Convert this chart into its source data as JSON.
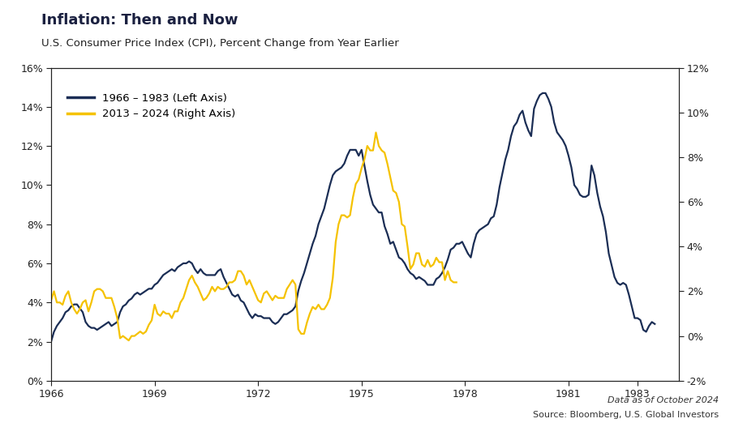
{
  "title": "Inflation: Then and Now",
  "subtitle": "U.S. Consumer Price Index (CPI), Percent Change from Year Earlier",
  "legend1": "1966 – 1983 (Left Axis)",
  "legend2": "2013 – 2024 (Right Axis)",
  "color1": "#1b2e55",
  "color2": "#f5c200",
  "source_line1": "Data as of October 2024",
  "source_line2": "Source: Bloomberg, U.S. Global Investors",
  "left_ylim": [
    0,
    16
  ],
  "right_ylim": [
    -2,
    12
  ],
  "left_yticks": [
    0,
    2,
    4,
    6,
    8,
    10,
    12,
    14,
    16
  ],
  "right_yticks": [
    -2,
    0,
    2,
    4,
    6,
    8,
    10,
    12
  ],
  "xticks": [
    1966,
    1969,
    1972,
    1975,
    1978,
    1981,
    1983
  ],
  "xlim": [
    1966,
    1984.2
  ],
  "series1_x": [
    1966.0,
    1966.083,
    1966.167,
    1966.25,
    1966.333,
    1966.417,
    1966.5,
    1966.583,
    1966.667,
    1966.75,
    1966.833,
    1966.917,
    1967.0,
    1967.083,
    1967.167,
    1967.25,
    1967.333,
    1967.417,
    1967.5,
    1967.583,
    1967.667,
    1967.75,
    1967.833,
    1967.917,
    1968.0,
    1968.083,
    1968.167,
    1968.25,
    1968.333,
    1968.417,
    1968.5,
    1968.583,
    1968.667,
    1968.75,
    1968.833,
    1968.917,
    1969.0,
    1969.083,
    1969.167,
    1969.25,
    1969.333,
    1969.417,
    1969.5,
    1969.583,
    1969.667,
    1969.75,
    1969.833,
    1969.917,
    1970.0,
    1970.083,
    1970.167,
    1970.25,
    1970.333,
    1970.417,
    1970.5,
    1970.583,
    1970.667,
    1970.75,
    1970.833,
    1970.917,
    1971.0,
    1971.083,
    1971.167,
    1971.25,
    1971.333,
    1971.417,
    1971.5,
    1971.583,
    1971.667,
    1971.75,
    1971.833,
    1971.917,
    1972.0,
    1972.083,
    1972.167,
    1972.25,
    1972.333,
    1972.417,
    1972.5,
    1972.583,
    1972.667,
    1972.75,
    1972.833,
    1972.917,
    1973.0,
    1973.083,
    1973.167,
    1973.25,
    1973.333,
    1973.417,
    1973.5,
    1973.583,
    1973.667,
    1973.75,
    1973.833,
    1973.917,
    1974.0,
    1974.083,
    1974.167,
    1974.25,
    1974.333,
    1974.417,
    1974.5,
    1974.583,
    1974.667,
    1974.75,
    1974.833,
    1974.917,
    1975.0,
    1975.083,
    1975.167,
    1975.25,
    1975.333,
    1975.417,
    1975.5,
    1975.583,
    1975.667,
    1975.75,
    1975.833,
    1975.917,
    1976.0,
    1976.083,
    1976.167,
    1976.25,
    1976.333,
    1976.417,
    1976.5,
    1976.583,
    1976.667,
    1976.75,
    1976.833,
    1976.917,
    1977.0,
    1977.083,
    1977.167,
    1977.25,
    1977.333,
    1977.417,
    1977.5,
    1977.583,
    1977.667,
    1977.75,
    1977.833,
    1977.917,
    1978.0,
    1978.083,
    1978.167,
    1978.25,
    1978.333,
    1978.417,
    1978.5,
    1978.583,
    1978.667,
    1978.75,
    1978.833,
    1978.917,
    1979.0,
    1979.083,
    1979.167,
    1979.25,
    1979.333,
    1979.417,
    1979.5,
    1979.583,
    1979.667,
    1979.75,
    1979.833,
    1979.917,
    1980.0,
    1980.083,
    1980.167,
    1980.25,
    1980.333,
    1980.417,
    1980.5,
    1980.583,
    1980.667,
    1980.75,
    1980.833,
    1980.917,
    1981.0,
    1981.083,
    1981.167,
    1981.25,
    1981.333,
    1981.417,
    1981.5,
    1981.583,
    1981.667,
    1981.75,
    1981.833,
    1981.917,
    1982.0,
    1982.083,
    1982.167,
    1982.25,
    1982.333,
    1982.417,
    1982.5,
    1982.583,
    1982.667,
    1982.75,
    1982.833,
    1982.917,
    1983.0,
    1983.083,
    1983.167,
    1983.25,
    1983.333,
    1983.417,
    1983.5
  ],
  "series1_y": [
    2.0,
    2.5,
    2.8,
    3.0,
    3.2,
    3.5,
    3.6,
    3.8,
    3.9,
    3.9,
    3.7,
    3.5,
    3.0,
    2.8,
    2.7,
    2.7,
    2.6,
    2.7,
    2.8,
    2.9,
    3.0,
    2.8,
    2.9,
    3.0,
    3.5,
    3.8,
    3.9,
    4.1,
    4.2,
    4.4,
    4.5,
    4.4,
    4.5,
    4.6,
    4.7,
    4.7,
    4.9,
    5.0,
    5.2,
    5.4,
    5.5,
    5.6,
    5.7,
    5.6,
    5.8,
    5.9,
    6.0,
    6.0,
    6.1,
    6.0,
    5.7,
    5.5,
    5.7,
    5.5,
    5.4,
    5.4,
    5.4,
    5.4,
    5.6,
    5.7,
    5.3,
    5.0,
    4.7,
    4.4,
    4.3,
    4.4,
    4.1,
    4.0,
    3.7,
    3.4,
    3.2,
    3.4,
    3.3,
    3.3,
    3.2,
    3.2,
    3.2,
    3.0,
    2.9,
    3.0,
    3.2,
    3.4,
    3.4,
    3.5,
    3.6,
    3.8,
    4.6,
    5.1,
    5.5,
    6.0,
    6.5,
    7.0,
    7.4,
    8.0,
    8.4,
    8.8,
    9.4,
    10.0,
    10.5,
    10.7,
    10.8,
    10.9,
    11.1,
    11.5,
    11.8,
    11.8,
    11.8,
    11.5,
    11.8,
    11.0,
    10.2,
    9.5,
    9.0,
    8.8,
    8.6,
    8.6,
    7.9,
    7.5,
    7.0,
    7.1,
    6.7,
    6.3,
    6.2,
    6.0,
    5.7,
    5.5,
    5.4,
    5.2,
    5.3,
    5.2,
    5.1,
    4.9,
    4.9,
    4.9,
    5.2,
    5.3,
    5.5,
    5.8,
    6.2,
    6.7,
    6.8,
    7.0,
    7.0,
    7.1,
    6.8,
    6.5,
    6.3,
    7.0,
    7.5,
    7.7,
    7.8,
    7.9,
    8.0,
    8.3,
    8.4,
    9.0,
    9.9,
    10.6,
    11.3,
    11.8,
    12.5,
    13.0,
    13.2,
    13.6,
    13.8,
    13.2,
    12.8,
    12.5,
    13.9,
    14.3,
    14.6,
    14.7,
    14.7,
    14.4,
    14.0,
    13.2,
    12.7,
    12.5,
    12.3,
    12.0,
    11.5,
    10.9,
    10.0,
    9.8,
    9.5,
    9.4,
    9.4,
    9.5,
    11.0,
    10.5,
    9.6,
    8.9,
    8.4,
    7.6,
    6.5,
    5.9,
    5.3,
    5.0,
    4.9,
    5.0,
    4.9,
    4.4,
    3.8,
    3.2,
    3.2,
    3.1,
    2.6,
    2.5,
    2.8,
    3.0,
    2.9
  ],
  "series2_y": [
    1.59,
    2.0,
    1.5,
    1.5,
    1.4,
    1.8,
    2.0,
    1.5,
    1.2,
    1.0,
    1.2,
    1.5,
    1.6,
    1.1,
    1.5,
    2.0,
    2.1,
    2.1,
    2.0,
    1.7,
    1.7,
    1.7,
    1.3,
    0.8,
    -0.1,
    0.0,
    -0.1,
    -0.2,
    0.0,
    0.0,
    0.1,
    0.2,
    0.1,
    0.2,
    0.5,
    0.7,
    1.4,
    1.0,
    0.9,
    1.1,
    1.0,
    1.0,
    0.8,
    1.1,
    1.1,
    1.5,
    1.7,
    2.1,
    2.5,
    2.7,
    2.4,
    2.2,
    1.9,
    1.6,
    1.7,
    1.9,
    2.2,
    2.0,
    2.2,
    2.1,
    2.1,
    2.2,
    2.4,
    2.4,
    2.5,
    2.9,
    2.9,
    2.7,
    2.3,
    2.5,
    2.2,
    1.9,
    1.6,
    1.5,
    1.9,
    2.0,
    1.8,
    1.6,
    1.8,
    1.7,
    1.7,
    1.7,
    2.1,
    2.3,
    2.5,
    2.3,
    0.3,
    0.1,
    0.1,
    0.6,
    1.0,
    1.3,
    1.2,
    1.4,
    1.2,
    1.2,
    1.4,
    1.7,
    2.6,
    4.2,
    5.0,
    5.4,
    5.4,
    5.3,
    5.4,
    6.2,
    6.8,
    7.0,
    7.5,
    7.9,
    8.5,
    8.3,
    8.3,
    9.1,
    8.5,
    8.3,
    8.2,
    7.7,
    7.1,
    6.5,
    6.4,
    6.0,
    5.0,
    4.9,
    4.0,
    3.0,
    3.2,
    3.7,
    3.7,
    3.2,
    3.1,
    3.4,
    3.1,
    3.2,
    3.5,
    3.3,
    3.3,
    2.5,
    2.9,
    2.5,
    2.4,
    2.4
  ]
}
